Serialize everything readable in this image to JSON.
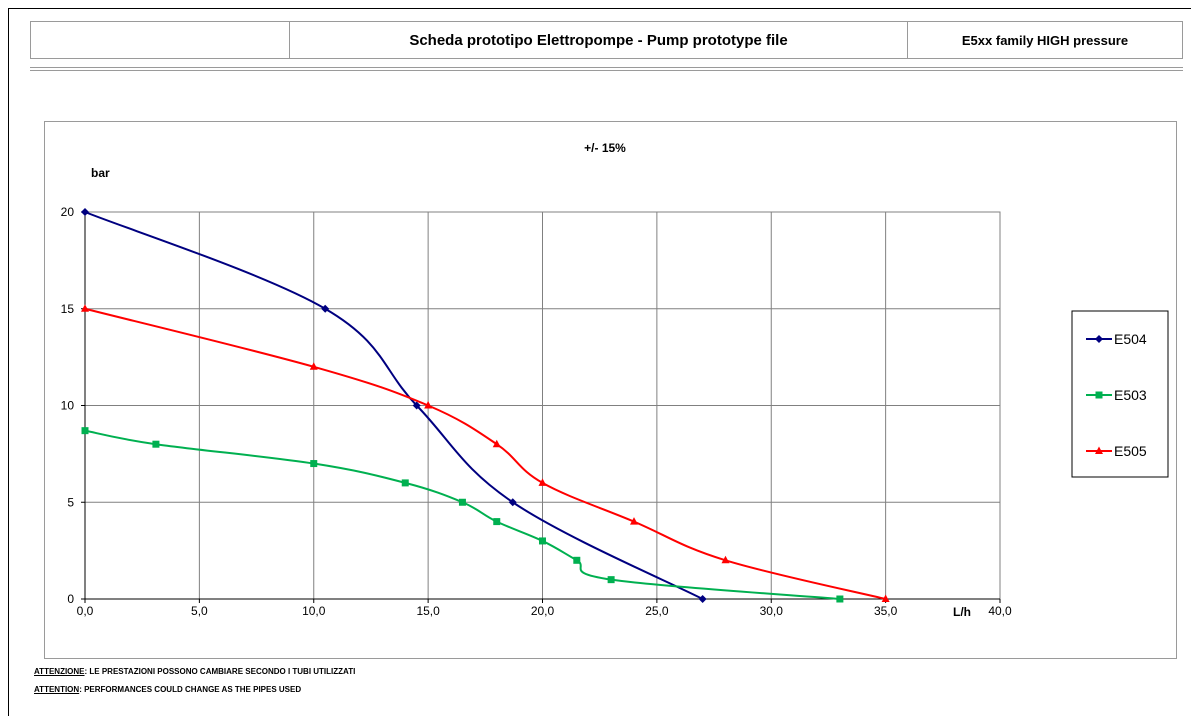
{
  "header": {
    "left_cell": "",
    "title": "Scheda prototipo Elettropompe - Pump prototype file",
    "family": "E5xx family HIGH pressure"
  },
  "chart_data": {
    "type": "line",
    "title": "+/- 15%",
    "xlabel": "L/h",
    "ylabel": "bar",
    "xlim": [
      0,
      40
    ],
    "ylim": [
      0,
      20
    ],
    "x_ticks": [
      0,
      5,
      10,
      15,
      20,
      25,
      30,
      35,
      40
    ],
    "x_tick_labels": [
      "0,0",
      "5,0",
      "10,0",
      "15,0",
      "20,0",
      "25,0",
      "30,0",
      "35,0",
      "40,0"
    ],
    "y_ticks": [
      0,
      5,
      10,
      15,
      20
    ],
    "y_tick_labels": [
      "0",
      "5",
      "10",
      "15",
      "20"
    ],
    "grid": true,
    "legend_position": "right",
    "series": [
      {
        "name": "E504",
        "color": "#000080",
        "marker": "diamond",
        "x": [
          0,
          10.5,
          14.5,
          18.7,
          27
        ],
        "y": [
          20,
          15,
          10,
          5,
          0
        ]
      },
      {
        "name": "E503",
        "color": "#00b050",
        "marker": "square",
        "x": [
          0,
          3.1,
          10,
          14,
          16.5,
          18,
          20,
          21.5,
          23,
          33
        ],
        "y": [
          8.7,
          8,
          7,
          6,
          5,
          4,
          3,
          2,
          1,
          0
        ]
      },
      {
        "name": "E505",
        "color": "#ff0000",
        "marker": "triangle",
        "x": [
          0,
          10,
          15,
          18,
          20,
          24,
          28,
          35
        ],
        "y": [
          15,
          12,
          10,
          8,
          6,
          4,
          2,
          0
        ]
      }
    ]
  },
  "notes": {
    "it_label": "ATTENZIONE",
    "it_text": ": LE PRESTAZIONI POSSONO CAMBIARE SECONDO I TUBI UTILIZZATI",
    "en_label": "ATTENTION",
    "en_text": ": PERFORMANCES COULD CHANGE AS THE PIPES USED"
  }
}
